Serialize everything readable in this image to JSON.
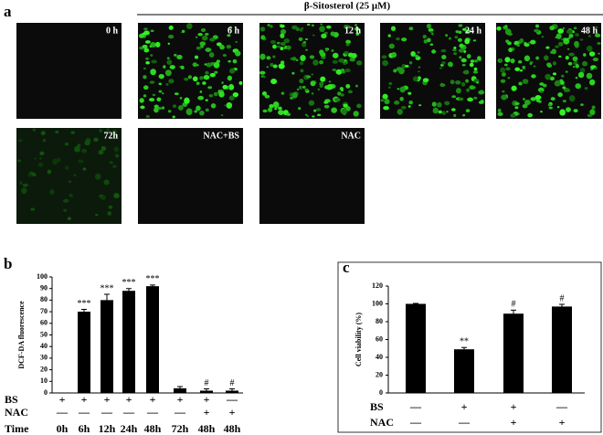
{
  "panel_a": {
    "label": "a",
    "header": "β-Sitosterol (25 μM)",
    "tile_labels": [
      "0 h",
      "6 h",
      "12 h",
      "24 h",
      "48 h",
      "72h",
      "NAC+BS",
      "NAC"
    ]
  },
  "chart_data": [
    {
      "type": "bar",
      "panel": "b",
      "ylabel": "DCF-DA fluorescence",
      "categories_label": "Time",
      "categories": [
        "0h",
        "6h",
        "12h",
        "24h",
        "48h",
        "72h",
        "48h",
        "48h"
      ],
      "values": [
        0,
        70,
        80,
        88,
        92,
        4,
        2,
        2
      ],
      "errors": [
        0,
        2,
        5,
        2,
        1,
        1.5,
        1.5,
        1.5
      ],
      "annotations": [
        null,
        "***",
        "***",
        "***",
        "***",
        null,
        "#",
        "#"
      ],
      "rows": [
        {
          "label": "BS",
          "marks": [
            "+",
            "+",
            "+",
            "+",
            "+",
            "+",
            "+",
            "—"
          ]
        },
        {
          "label": "NAC",
          "marks": [
            "—",
            "—",
            "—",
            "—",
            "—",
            "—",
            "+",
            "+"
          ]
        }
      ],
      "color": "#000000",
      "ylim": [
        0,
        100
      ],
      "yticks": [
        0,
        10,
        20,
        30,
        40,
        50,
        60,
        70,
        80,
        90,
        100
      ]
    },
    {
      "type": "bar",
      "panel": "c",
      "ylabel": "Cell viability (%)",
      "values": [
        100,
        49,
        89,
        97
      ],
      "errors": [
        0.5,
        2,
        4,
        2.5
      ],
      "annotations": [
        null,
        "**",
        "#",
        "#"
      ],
      "rows": [
        {
          "label": "BS",
          "marks": [
            "—",
            "+",
            "+",
            "—"
          ]
        },
        {
          "label": "NAC",
          "marks": [
            "—",
            "—",
            "+",
            "+"
          ]
        }
      ],
      "color": "#000000",
      "ylim": [
        0,
        120
      ],
      "yticks": [
        0,
        20,
        40,
        60,
        80,
        100,
        120
      ]
    }
  ]
}
